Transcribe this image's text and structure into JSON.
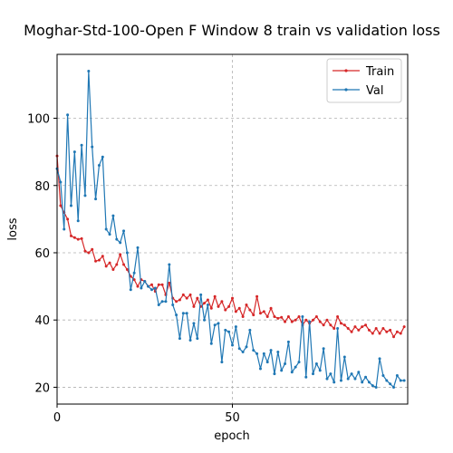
{
  "chart_data": {
    "type": "line",
    "title": "Moghar-Std-100-Open F Window 8 train vs validation loss",
    "xlabel": "epoch",
    "ylabel": "loss",
    "xlim": [
      0,
      100
    ],
    "ylim": [
      15,
      119
    ],
    "xticks": [
      0,
      50
    ],
    "yticks": [
      20,
      40,
      60,
      80,
      100
    ],
    "grid": true,
    "legend_position": "top-right",
    "series": [
      {
        "name": "Train",
        "color": "#d62728",
        "marker": "point",
        "x": [
          0,
          1,
          2,
          3,
          4,
          5,
          6,
          7,
          8,
          9,
          10,
          11,
          12,
          13,
          14,
          15,
          16,
          17,
          18,
          19,
          20,
          21,
          22,
          23,
          24,
          25,
          26,
          27,
          28,
          29,
          30,
          31,
          32,
          33,
          34,
          35,
          36,
          37,
          38,
          39,
          40,
          41,
          42,
          43,
          44,
          45,
          46,
          47,
          48,
          49,
          50,
          51,
          52,
          53,
          54,
          55,
          56,
          57,
          58,
          59,
          60,
          61,
          62,
          63,
          64,
          65,
          66,
          67,
          68,
          69,
          70,
          71,
          72,
          73,
          74,
          75,
          76,
          77,
          78,
          79,
          80,
          81,
          82,
          83,
          84,
          85,
          86,
          87,
          88,
          89,
          90,
          91,
          92,
          93,
          94,
          95,
          96,
          97,
          98,
          99
        ],
        "values": [
          88.8,
          74.0,
          72.0,
          70.0,
          65.0,
          64.5,
          64.0,
          64.2,
          60.5,
          60.0,
          61.0,
          57.5,
          57.8,
          59.0,
          56.0,
          57.0,
          55.0,
          56.5,
          59.5,
          56.5,
          55.0,
          53.0,
          52.0,
          50.0,
          52.0,
          51.5,
          50.0,
          50.5,
          48.5,
          50.5,
          50.5,
          47.5,
          51.0,
          46.5,
          45.5,
          46.0,
          47.5,
          46.5,
          47.5,
          44.0,
          46.5,
          44.0,
          45.0,
          46.0,
          43.5,
          47.0,
          44.0,
          45.5,
          43.0,
          44.0,
          46.5,
          42.5,
          43.5,
          41.0,
          44.5,
          43.0,
          41.5,
          47.0,
          42.0,
          42.5,
          41.0,
          43.5,
          41.0,
          40.5,
          40.8,
          39.5,
          41.0,
          39.5,
          40.0,
          41.0,
          38.5,
          40.0,
          39.0,
          40.0,
          41.0,
          39.5,
          38.5,
          40.0,
          38.5,
          37.5,
          41.0,
          39.0,
          38.5,
          37.5,
          36.5,
          38.0,
          37.0,
          38.0,
          38.5,
          37.0,
          36.0,
          37.5,
          36.0,
          37.5,
          36.5,
          37.0,
          35.0,
          36.5,
          36.0,
          38.0
        ]
      },
      {
        "name": "Val",
        "color": "#1f77b4",
        "marker": "point",
        "x": [
          0,
          1,
          2,
          3,
          4,
          5,
          6,
          7,
          8,
          9,
          10,
          11,
          12,
          13,
          14,
          15,
          16,
          17,
          18,
          19,
          20,
          21,
          22,
          23,
          24,
          25,
          26,
          27,
          28,
          29,
          30,
          31,
          32,
          33,
          34,
          35,
          36,
          37,
          38,
          39,
          40,
          41,
          42,
          43,
          44,
          45,
          46,
          47,
          48,
          49,
          50,
          51,
          52,
          53,
          54,
          55,
          56,
          57,
          58,
          59,
          60,
          61,
          62,
          63,
          64,
          65,
          66,
          67,
          68,
          69,
          70,
          71,
          72,
          73,
          74,
          75,
          76,
          77,
          78,
          79,
          80,
          81,
          82,
          83,
          84,
          85,
          86,
          87,
          88,
          89,
          90,
          91,
          92,
          93,
          94,
          95,
          96,
          97,
          98,
          99
        ],
        "values": [
          85.0,
          81.0,
          67.0,
          101.0,
          74.0,
          90.0,
          69.5,
          92.0,
          77.0,
          114.0,
          91.5,
          76.0,
          86.0,
          88.5,
          67.0,
          65.5,
          71.0,
          64.0,
          63.0,
          66.5,
          60.0,
          49.0,
          54.0,
          61.5,
          49.5,
          51.5,
          50.0,
          49.0,
          49.5,
          44.5,
          45.5,
          45.5,
          56.5,
          44.5,
          41.5,
          34.5,
          42.0,
          42.0,
          34.0,
          39.0,
          34.5,
          47.5,
          40.0,
          44.5,
          33.0,
          38.5,
          39.0,
          27.5,
          37.0,
          36.5,
          32.5,
          38.0,
          31.5,
          30.5,
          32.0,
          37.0,
          31.0,
          30.0,
          25.5,
          30.0,
          27.5,
          31.0,
          24.0,
          30.5,
          25.0,
          27.0,
          33.5,
          24.5,
          26.0,
          27.5,
          41.0,
          23.0,
          39.5,
          24.0,
          27.0,
          25.0,
          31.5,
          22.5,
          24.0,
          21.5,
          37.5,
          22.0,
          29.0,
          22.5,
          24.0,
          22.5,
          24.5,
          21.5,
          23.0,
          21.5,
          20.5,
          20.0,
          28.5,
          23.5,
          22.0,
          21.0,
          20.0,
          23.5,
          22.0,
          22.0
        ]
      }
    ]
  }
}
